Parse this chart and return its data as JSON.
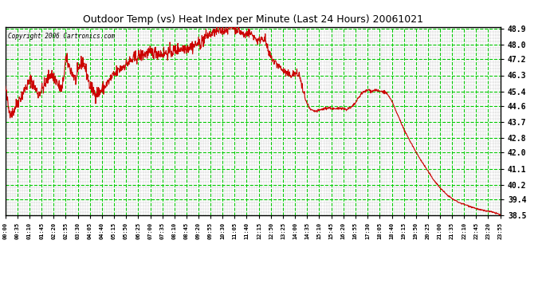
{
  "title": "Outdoor Temp (vs) Heat Index per Minute (Last 24 Hours) 20061021",
  "copyright": "Copyright 2006 Cartronics.com",
  "bg_color": "#ffffff",
  "plot_bg_color": "#ffffff",
  "line_color": "#cc0000",
  "grid_major_color": "#00cc00",
  "grid_minor_color": "#888888",
  "y_min": 38.5,
  "y_max": 49.0,
  "y_ticks": [
    38.5,
    39.4,
    40.2,
    41.1,
    42.0,
    42.8,
    43.7,
    44.6,
    45.4,
    46.3,
    47.2,
    48.0,
    48.9
  ],
  "x_labels": [
    "00:00",
    "00:35",
    "01:10",
    "01:45",
    "02:20",
    "02:55",
    "03:30",
    "04:05",
    "04:40",
    "05:15",
    "05:50",
    "06:25",
    "07:00",
    "07:35",
    "08:10",
    "08:45",
    "09:20",
    "09:55",
    "10:30",
    "11:05",
    "11:40",
    "12:15",
    "12:50",
    "13:25",
    "14:00",
    "14:35",
    "15:10",
    "15:45",
    "16:20",
    "16:55",
    "17:30",
    "18:05",
    "18:40",
    "19:15",
    "19:50",
    "20:25",
    "21:00",
    "21:35",
    "22:10",
    "22:45",
    "23:20",
    "23:55"
  ],
  "keypoints": [
    [
      0,
      45.6
    ],
    [
      10,
      44.3
    ],
    [
      20,
      44.2
    ],
    [
      35,
      44.8
    ],
    [
      50,
      45.3
    ],
    [
      65,
      45.8
    ],
    [
      75,
      46.1
    ],
    [
      85,
      45.6
    ],
    [
      95,
      45.3
    ],
    [
      105,
      45.5
    ],
    [
      115,
      45.8
    ],
    [
      130,
      46.4
    ],
    [
      145,
      46.1
    ],
    [
      155,
      45.7
    ],
    [
      165,
      45.5
    ],
    [
      175,
      47.2
    ],
    [
      185,
      46.8
    ],
    [
      195,
      46.4
    ],
    [
      205,
      46.0
    ],
    [
      215,
      46.8
    ],
    [
      225,
      47.1
    ],
    [
      235,
      46.5
    ],
    [
      245,
      45.7
    ],
    [
      260,
      45.3
    ],
    [
      275,
      45.4
    ],
    [
      290,
      45.7
    ],
    [
      310,
      46.2
    ],
    [
      330,
      46.6
    ],
    [
      355,
      47.0
    ],
    [
      380,
      47.3
    ],
    [
      405,
      47.5
    ],
    [
      430,
      47.6
    ],
    [
      455,
      47.5
    ],
    [
      480,
      47.6
    ],
    [
      510,
      47.8
    ],
    [
      540,
      47.9
    ],
    [
      565,
      48.1
    ],
    [
      585,
      48.5
    ],
    [
      610,
      48.7
    ],
    [
      635,
      48.8
    ],
    [
      655,
      49.0
    ],
    [
      670,
      48.9
    ],
    [
      685,
      48.7
    ],
    [
      695,
      48.5
    ],
    [
      705,
      48.7
    ],
    [
      715,
      48.6
    ],
    [
      725,
      48.4
    ],
    [
      735,
      48.2
    ],
    [
      745,
      48.4
    ],
    [
      755,
      48.3
    ],
    [
      765,
      47.5
    ],
    [
      780,
      47.1
    ],
    [
      795,
      46.8
    ],
    [
      810,
      46.5
    ],
    [
      825,
      46.3
    ],
    [
      840,
      46.4
    ],
    [
      855,
      46.3
    ],
    [
      865,
      45.4
    ],
    [
      875,
      44.8
    ],
    [
      885,
      44.4
    ],
    [
      895,
      44.3
    ],
    [
      905,
      44.3
    ],
    [
      920,
      44.4
    ],
    [
      940,
      44.5
    ],
    [
      960,
      44.4
    ],
    [
      975,
      44.5
    ],
    [
      990,
      44.4
    ],
    [
      1005,
      44.5
    ],
    [
      1015,
      44.7
    ],
    [
      1025,
      45.0
    ],
    [
      1035,
      45.3
    ],
    [
      1045,
      45.4
    ],
    [
      1055,
      45.5
    ],
    [
      1065,
      45.4
    ],
    [
      1075,
      45.5
    ],
    [
      1085,
      45.4
    ],
    [
      1095,
      45.4
    ],
    [
      1100,
      45.4
    ],
    [
      1108,
      45.3
    ],
    [
      1115,
      45.1
    ],
    [
      1125,
      44.8
    ],
    [
      1135,
      44.3
    ],
    [
      1145,
      43.9
    ],
    [
      1160,
      43.2
    ],
    [
      1180,
      42.5
    ],
    [
      1200,
      41.8
    ],
    [
      1220,
      41.2
    ],
    [
      1240,
      40.6
    ],
    [
      1260,
      40.1
    ],
    [
      1280,
      39.7
    ],
    [
      1300,
      39.4
    ],
    [
      1320,
      39.2
    ],
    [
      1350,
      39.0
    ],
    [
      1380,
      38.8
    ],
    [
      1410,
      38.7
    ],
    [
      1430,
      38.6
    ],
    [
      1439,
      38.5
    ]
  ]
}
